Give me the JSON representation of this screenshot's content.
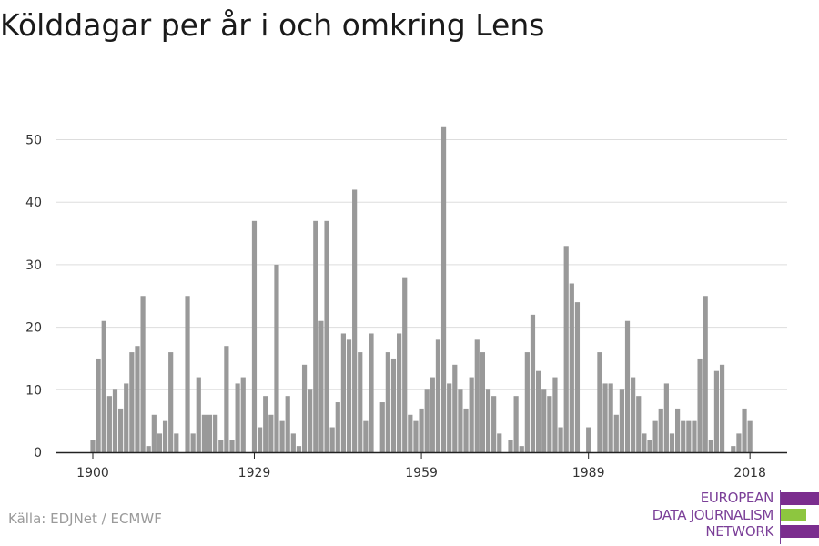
{
  "title": "Kölddagar per år i och omkring Lens",
  "source": "Källa: EDJNet / ECMWF",
  "logo": {
    "lines": [
      "EUROPEAN",
      "DATA JOURNALISM",
      "NETWORK"
    ],
    "colors": {
      "purple": "#7b2d8e",
      "green": "#8dc63f",
      "text": "#7b3f98"
    }
  },
  "chart_data": {
    "type": "bar",
    "title": "Kölddagar per år i och omkring Lens",
    "xlabel": "",
    "ylabel": "",
    "x_start": 1900,
    "x": [
      1900,
      1901,
      1902,
      1903,
      1904,
      1905,
      1906,
      1907,
      1908,
      1909,
      1910,
      1911,
      1912,
      1913,
      1914,
      1915,
      1916,
      1917,
      1918,
      1919,
      1920,
      1921,
      1922,
      1923,
      1924,
      1925,
      1926,
      1927,
      1928,
      1929,
      1930,
      1931,
      1932,
      1933,
      1934,
      1935,
      1936,
      1937,
      1938,
      1939,
      1940,
      1941,
      1942,
      1943,
      1944,
      1945,
      1946,
      1947,
      1948,
      1949,
      1950,
      1951,
      1952,
      1953,
      1954,
      1955,
      1956,
      1957,
      1958,
      1959,
      1960,
      1961,
      1962,
      1963,
      1964,
      1965,
      1966,
      1967,
      1968,
      1969,
      1970,
      1971,
      1972,
      1973,
      1974,
      1975,
      1976,
      1977,
      1978,
      1979,
      1980,
      1981,
      1982,
      1983,
      1984,
      1985,
      1986,
      1987,
      1988,
      1989,
      1990,
      1991,
      1992,
      1993,
      1994,
      1995,
      1996,
      1997,
      1998,
      1999,
      2000,
      2001,
      2002,
      2003,
      2004,
      2005,
      2006,
      2007,
      2008,
      2009,
      2010,
      2011,
      2012,
      2013,
      2014,
      2015,
      2016,
      2017,
      2018,
      2019
    ],
    "values": [
      2,
      15,
      21,
      9,
      10,
      7,
      11,
      16,
      17,
      25,
      1,
      6,
      3,
      5,
      16,
      3,
      0,
      25,
      3,
      12,
      6,
      6,
      6,
      2,
      17,
      2,
      11,
      12,
      0,
      37,
      4,
      9,
      6,
      30,
      5,
      9,
      3,
      1,
      14,
      10,
      37,
      21,
      37,
      4,
      8,
      19,
      18,
      42,
      16,
      5,
      19,
      0,
      8,
      16,
      15,
      19,
      28,
      6,
      5,
      7,
      10,
      12,
      18,
      52,
      11,
      14,
      10,
      7,
      12,
      18,
      16,
      10,
      9,
      3,
      0,
      2,
      9,
      1,
      16,
      22,
      13,
      10,
      9,
      12,
      4,
      33,
      27,
      24,
      0,
      4,
      0,
      16,
      11,
      11,
      6,
      10,
      21,
      12,
      9,
      3,
      2,
      5,
      7,
      11,
      3,
      7,
      5,
      5,
      5,
      15,
      25,
      2,
      13,
      14,
      0,
      1,
      3,
      7,
      5,
      0
    ],
    "ylim": [
      0,
      55
    ],
    "yticks": [
      0,
      10,
      20,
      30,
      40,
      50
    ],
    "xticks": [
      1900,
      1929,
      1959,
      1989,
      2018
    ],
    "grid": true,
    "colors": {
      "bar": "#999999",
      "grid": "#dddddd",
      "axis": "#222222"
    }
  }
}
